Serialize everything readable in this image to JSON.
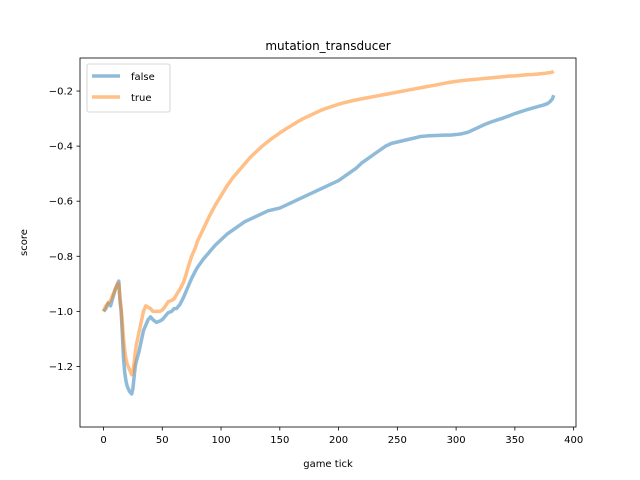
{
  "chart_data": {
    "type": "line",
    "title": "mutation_transducer",
    "xlabel": "game tick",
    "ylabel": "score",
    "xlim": [
      -20,
      402
    ],
    "ylim": [
      -1.42,
      -0.08
    ],
    "xticks": [
      0,
      50,
      100,
      150,
      200,
      250,
      300,
      350,
      400
    ],
    "yticks": [
      -1.2,
      -1.0,
      -0.8,
      -0.6,
      -0.4,
      -0.2
    ],
    "grid": false,
    "legend_position": "top-left",
    "series": [
      {
        "name": "false",
        "color": "#1f77b4",
        "opacity": 0.5,
        "x": [
          0,
          2,
          4,
          6,
          8,
          10,
          12,
          13,
          14,
          15,
          16,
          17,
          18,
          19,
          20,
          21,
          22,
          23,
          24,
          25,
          26,
          27,
          28,
          30,
          32,
          34,
          36,
          38,
          40,
          42,
          45,
          48,
          50,
          52,
          55,
          58,
          60,
          62,
          65,
          68,
          70,
          72,
          75,
          78,
          80,
          85,
          90,
          95,
          100,
          105,
          110,
          115,
          120,
          125,
          130,
          135,
          140,
          145,
          150,
          155,
          160,
          165,
          170,
          175,
          180,
          185,
          190,
          195,
          200,
          205,
          210,
          215,
          220,
          225,
          230,
          235,
          240,
          245,
          250,
          255,
          260,
          265,
          270,
          275,
          280,
          285,
          290,
          295,
          300,
          305,
          310,
          315,
          320,
          325,
          330,
          335,
          340,
          345,
          350,
          355,
          360,
          365,
          370,
          375,
          378,
          380,
          382,
          383
        ],
        "y": [
          -1.0,
          -0.99,
          -0.97,
          -0.98,
          -0.95,
          -0.92,
          -0.9,
          -0.89,
          -0.96,
          -1.0,
          -1.08,
          -1.17,
          -1.22,
          -1.25,
          -1.27,
          -1.28,
          -1.29,
          -1.295,
          -1.3,
          -1.28,
          -1.24,
          -1.2,
          -1.18,
          -1.15,
          -1.11,
          -1.07,
          -1.05,
          -1.03,
          -1.02,
          -1.03,
          -1.04,
          -1.035,
          -1.03,
          -1.02,
          -1.005,
          -1.0,
          -0.99,
          -0.99,
          -0.975,
          -0.95,
          -0.93,
          -0.91,
          -0.88,
          -0.855,
          -0.84,
          -0.81,
          -0.785,
          -0.76,
          -0.74,
          -0.72,
          -0.705,
          -0.69,
          -0.675,
          -0.665,
          -0.655,
          -0.645,
          -0.635,
          -0.63,
          -0.625,
          -0.615,
          -0.605,
          -0.595,
          -0.585,
          -0.575,
          -0.565,
          -0.555,
          -0.545,
          -0.535,
          -0.525,
          -0.51,
          -0.495,
          -0.48,
          -0.46,
          -0.445,
          -0.43,
          -0.415,
          -0.4,
          -0.39,
          -0.385,
          -0.38,
          -0.375,
          -0.37,
          -0.365,
          -0.363,
          -0.362,
          -0.361,
          -0.36,
          -0.36,
          -0.358,
          -0.355,
          -0.35,
          -0.34,
          -0.33,
          -0.32,
          -0.312,
          -0.305,
          -0.298,
          -0.29,
          -0.282,
          -0.275,
          -0.268,
          -0.262,
          -0.256,
          -0.25,
          -0.245,
          -0.238,
          -0.228,
          -0.215
        ]
      },
      {
        "name": "true",
        "color": "#ff7f0e",
        "opacity": 0.5,
        "x": [
          0,
          2,
          4,
          6,
          8,
          10,
          12,
          13,
          14,
          15,
          16,
          17,
          18,
          19,
          20,
          21,
          22,
          23,
          24,
          25,
          26,
          27,
          28,
          30,
          32,
          34,
          36,
          38,
          40,
          42,
          45,
          48,
          50,
          52,
          55,
          58,
          60,
          62,
          65,
          68,
          70,
          72,
          75,
          78,
          80,
          85,
          90,
          95,
          100,
          105,
          110,
          115,
          120,
          125,
          130,
          135,
          140,
          145,
          150,
          155,
          160,
          165,
          170,
          175,
          180,
          185,
          190,
          195,
          200,
          205,
          210,
          215,
          220,
          225,
          230,
          235,
          240,
          245,
          250,
          255,
          260,
          265,
          270,
          275,
          280,
          285,
          290,
          295,
          300,
          305,
          310,
          315,
          320,
          325,
          330,
          335,
          340,
          345,
          350,
          355,
          360,
          365,
          370,
          375,
          378,
          380,
          382,
          383
        ],
        "y": [
          -1.0,
          -0.98,
          -0.97,
          -0.96,
          -0.94,
          -0.92,
          -0.9,
          -0.9,
          -0.95,
          -0.99,
          -1.04,
          -1.1,
          -1.14,
          -1.17,
          -1.19,
          -1.2,
          -1.21,
          -1.22,
          -1.23,
          -1.22,
          -1.19,
          -1.15,
          -1.12,
          -1.08,
          -1.04,
          -1.0,
          -0.98,
          -0.985,
          -0.99,
          -1.0,
          -1.0,
          -1.0,
          -0.995,
          -0.985,
          -0.965,
          -0.96,
          -0.955,
          -0.94,
          -0.92,
          -0.895,
          -0.87,
          -0.84,
          -0.8,
          -0.77,
          -0.745,
          -0.7,
          -0.655,
          -0.615,
          -0.58,
          -0.545,
          -0.515,
          -0.49,
          -0.465,
          -0.44,
          -0.42,
          -0.4,
          -0.383,
          -0.367,
          -0.352,
          -0.338,
          -0.325,
          -0.312,
          -0.3,
          -0.29,
          -0.28,
          -0.27,
          -0.262,
          -0.255,
          -0.248,
          -0.242,
          -0.237,
          -0.232,
          -0.228,
          -0.224,
          -0.22,
          -0.216,
          -0.212,
          -0.208,
          -0.204,
          -0.2,
          -0.196,
          -0.192,
          -0.188,
          -0.184,
          -0.18,
          -0.176,
          -0.172,
          -0.168,
          -0.165,
          -0.162,
          -0.16,
          -0.158,
          -0.156,
          -0.154,
          -0.152,
          -0.15,
          -0.148,
          -0.146,
          -0.145,
          -0.143,
          -0.141,
          -0.14,
          -0.138,
          -0.136,
          -0.134,
          -0.133,
          -0.131,
          -0.128
        ]
      }
    ]
  }
}
